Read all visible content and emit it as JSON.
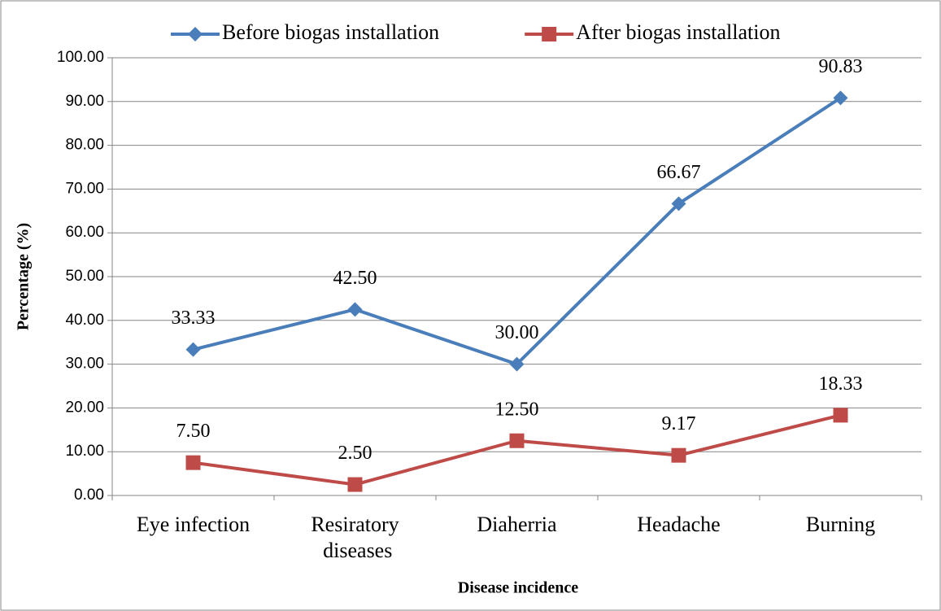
{
  "chart_data": {
    "type": "line",
    "x_label": "Disease incidence",
    "y_label": "Percentage (%)",
    "categories": [
      "Eye infection",
      "Resiratory diseases",
      "Diaherria",
      "Headache",
      "Burning"
    ],
    "series": [
      {
        "name": "Before biogas installation",
        "color": "#4a7ebb",
        "marker": "diamond",
        "values": [
          33.33,
          42.5,
          30,
          66.67,
          90.83
        ],
        "value_labels": [
          "33.33",
          "42.50",
          "30.00",
          "66.67",
          "90.83"
        ]
      },
      {
        "name": "After biogas installation",
        "color": "#be4b48",
        "marker": "square",
        "values": [
          7.5,
          2.5,
          12.5,
          9.17,
          18.33
        ],
        "value_labels": [
          "7.50",
          "2.50",
          "12.50",
          "9.17",
          "18.33"
        ]
      }
    ],
    "ylim": [
      0,
      100
    ],
    "yticks": [
      {
        "value": 0,
        "label": "0.00"
      },
      {
        "value": 10,
        "label": "10.00"
      },
      {
        "value": 20,
        "label": "20.00"
      },
      {
        "value": 30,
        "label": "30.00"
      },
      {
        "value": 40,
        "label": "40.00"
      },
      {
        "value": 50,
        "label": "50.00"
      },
      {
        "value": 60,
        "label": "60.00"
      },
      {
        "value": 70,
        "label": "70.00"
      },
      {
        "value": 80,
        "label": "80.00"
      },
      {
        "value": 90,
        "label": "90.00"
      },
      {
        "value": 100,
        "label": "100.00"
      }
    ],
    "grid": true,
    "legend": "top"
  }
}
